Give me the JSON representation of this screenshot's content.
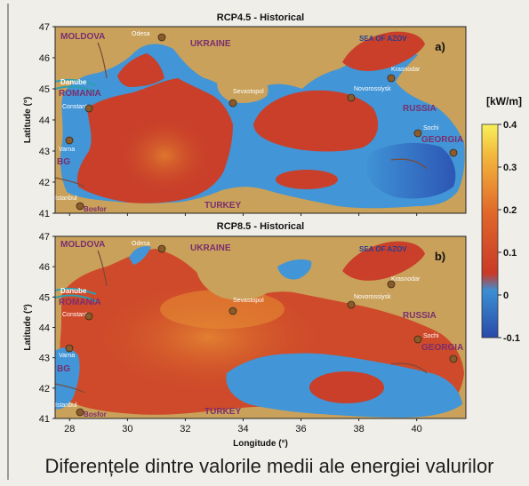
{
  "chart_data": [
    {
      "type": "heatmap",
      "title": "RCP4.5 - Historical",
      "panel_label": "a)",
      "xlabel": "Longitude (°)",
      "ylabel": "Latitude (°)",
      "xlim": [
        27.5,
        41.7
      ],
      "ylim": [
        41,
        47
      ],
      "x_ticks": [
        28,
        30,
        32,
        34,
        36,
        38,
        40
      ],
      "y_ticks": [
        41,
        42,
        43,
        44,
        45,
        46,
        47
      ],
      "place_labels": [
        "MOLDOVA",
        "UKRAINE",
        "SEA OF AZOV",
        "ROMANIA",
        "RUSSIA",
        "GEORGIA",
        "BG",
        "TURKEY",
        "Danube",
        "Odesa",
        "Constanta",
        "Sevastopol",
        "Novorossiysk",
        "Krasnodar",
        "Sochi",
        "Varna",
        "Istanbul",
        "Bosfor"
      ]
    },
    {
      "type": "heatmap",
      "title": "RCP8.5 - Historical",
      "panel_label": "b)",
      "xlabel": "Longitude (°)",
      "ylabel": "Latitude (°)",
      "xlim": [
        27.5,
        41.7
      ],
      "ylim": [
        41,
        47
      ],
      "x_ticks": [
        28,
        30,
        32,
        34,
        36,
        38,
        40
      ],
      "y_ticks": [
        41,
        42,
        43,
        44,
        45,
        46,
        47
      ],
      "place_labels": [
        "MOLDOVA",
        "UKRAINE",
        "SEA OF AZOV",
        "ROMANIA",
        "RUSSIA",
        "GEORGIA",
        "BG",
        "TURKEY",
        "Danube",
        "Odesa",
        "Constanta",
        "Sevastopol",
        "Novorossiysk",
        "Krasnodar",
        "Sochi",
        "Varna",
        "Istanbul",
        "Bosfor"
      ]
    }
  ],
  "colorbar": {
    "unit": "[kW/m]",
    "ticks": [
      "0.4",
      "0.3",
      "0.2",
      "0.1",
      "0",
      "-0.1"
    ],
    "range": [
      -0.1,
      0.4
    ]
  },
  "caption": "Diferențele dintre valorile medii ale energiei valurilor"
}
